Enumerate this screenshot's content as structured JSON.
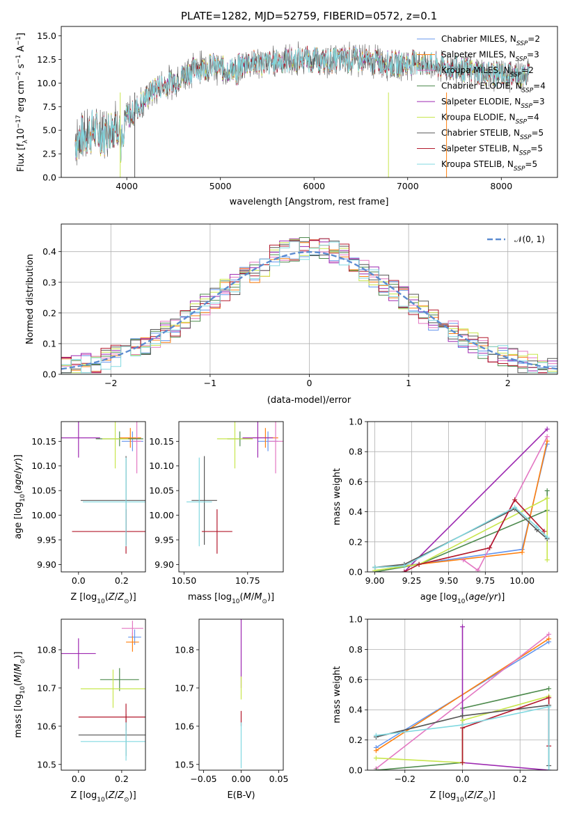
{
  "chart_data": [
    {
      "type": "line",
      "title": "PLATE=1282, MJD=52759, FIBERID=0572, z=0.1",
      "xlabel": "wavelength [Angstrom, rest frame]",
      "ylabel": "Flux [f_λ10^-17 erg cm^-2 s^-1 A^-1]",
      "xlim": [
        3300,
        8600
      ],
      "ylim": [
        0,
        16
      ],
      "xticks": [
        4000,
        5000,
        6000,
        7000,
        8000
      ],
      "yticks": [
        0.0,
        2.5,
        5.0,
        7.5,
        10.0,
        12.5,
        15.0
      ],
      "legend_position": "right",
      "approx_spectrum": {
        "x": [
          3450,
          3550,
          3650,
          3750,
          3850,
          3950,
          4100,
          4300,
          4500,
          4700,
          4900,
          5100,
          5300,
          5500,
          5700,
          5900,
          6100,
          6300,
          6500,
          6700,
          6900,
          7100,
          7300,
          7500,
          7700,
          7900,
          8100,
          8250
        ],
        "y": [
          3.8,
          4.5,
          5.0,
          4.5,
          5.5,
          6.0,
          7.2,
          9.5,
          10.2,
          11.4,
          11.8,
          11.4,
          12.2,
          12.1,
          12.4,
          12.6,
          12.3,
          12.5,
          12.4,
          12.2,
          12.0,
          12.2,
          11.8,
          11.6,
          11.2,
          11.0,
          10.9,
          10.8
        ]
      },
      "series": [
        {
          "name": "Chabrier MILES, N_SSP=2",
          "color": "#6495ed"
        },
        {
          "name": "Salpeter MILES, N_SSP=3",
          "color": "#ff7f0e"
        },
        {
          "name": "Kroupa MILES, N_SSP=2",
          "color": "#e377c2"
        },
        {
          "name": "Chabrier ELODIE, N_SSP=4",
          "color": "#4d8a4d"
        },
        {
          "name": "Salpeter ELODIE, N_SSP=3",
          "color": "#9c27b0"
        },
        {
          "name": "Kroupa ELODIE, N_SSP=4",
          "color": "#c8e64c"
        },
        {
          "name": "Chabrier STELIB, N_SSP=5",
          "color": "#555555"
        },
        {
          "name": "Salpeter STELIB, N_SSP=5",
          "color": "#b2182b"
        },
        {
          "name": "Kroupa STELIB, N_SSP=5",
          "color": "#80d8e0"
        }
      ]
    },
    {
      "type": "line",
      "xlabel": "(data-model)/error",
      "ylabel": "Normed distribution",
      "xlim": [
        -2.5,
        2.5
      ],
      "ylim": [
        0,
        0.49
      ],
      "xticks": [
        -2,
        -1,
        0,
        1,
        2
      ],
      "yticks": [
        0.0,
        0.1,
        0.2,
        0.3,
        0.4
      ],
      "grid": true,
      "legend_position": "top-right",
      "reference_curve": {
        "name": "𝒩(0, 1)",
        "color": "#5b8bd0",
        "style": "dashed"
      }
    },
    {
      "type": "scatter",
      "xlabel": "Z [log10(Z/Z⊙)]",
      "ylabel": "age  [log10(age/yr)]",
      "xlim": [
        -0.08,
        0.31
      ],
      "ylim": [
        9.885,
        10.19
      ],
      "xticks": [
        0.0,
        0.2
      ],
      "yticks": [
        9.9,
        9.95,
        10.0,
        10.05,
        10.1,
        10.15
      ],
      "points": [
        {
          "x": 0.25,
          "y": 10.15,
          "xerr": 0.05,
          "yerr": 0.02,
          "color": "#6495ed"
        },
        {
          "x": 0.24,
          "y": 10.157,
          "xerr": 0.05,
          "yerr": 0.02,
          "color": "#ff7f0e"
        },
        {
          "x": 0.27,
          "y": 10.15,
          "xerr": 0.02,
          "yerr": 0.065,
          "color": "#e377c2"
        },
        {
          "x": 0.19,
          "y": 10.155,
          "xerr": 0.11,
          "yerr": 0.015,
          "color": "#4d8a4d"
        },
        {
          "x": 0.0,
          "y": 10.157,
          "xerr": 0.1,
          "yerr": 0.04,
          "color": "#9c27b0"
        },
        {
          "x": 0.17,
          "y": 10.155,
          "xerr": 0.06,
          "yerr": 0.06,
          "color": "#c8e64c"
        },
        {
          "x": 0.22,
          "y": 10.03,
          "xerr": 0.21,
          "yerr": 0.09,
          "color": "#555555"
        },
        {
          "x": 0.22,
          "y": 9.967,
          "xerr": 0.25,
          "yerr": 0.045,
          "color": "#b2182b"
        },
        {
          "x": 0.22,
          "y": 10.027,
          "xerr": 0.2,
          "yerr": 0.09,
          "color": "#80d8e0"
        }
      ]
    },
    {
      "type": "scatter",
      "xlabel": "mass [log10(M/M⊙)]",
      "xlim": [
        10.48,
        10.89
      ],
      "ylim": [
        9.885,
        10.19
      ],
      "xticks": [
        10.5,
        10.75
      ],
      "yticks": [
        9.9,
        9.95,
        10.0,
        10.05,
        10.1,
        10.15
      ],
      "points": [
        {
          "x": 10.83,
          "y": 10.15,
          "xerr": 0.04,
          "yerr": 0.02,
          "color": "#6495ed"
        },
        {
          "x": 10.82,
          "y": 10.157,
          "xerr": 0.05,
          "yerr": 0.02,
          "color": "#ff7f0e"
        },
        {
          "x": 10.86,
          "y": 10.15,
          "xerr": 0.03,
          "yerr": 0.065,
          "color": "#e377c2"
        },
        {
          "x": 10.72,
          "y": 10.155,
          "xerr": 0.05,
          "yerr": 0.015,
          "color": "#4d8a4d"
        },
        {
          "x": 10.79,
          "y": 10.157,
          "xerr": 0.06,
          "yerr": 0.04,
          "color": "#9c27b0"
        },
        {
          "x": 10.7,
          "y": 10.155,
          "xerr": 0.07,
          "yerr": 0.06,
          "color": "#c8e64c"
        },
        {
          "x": 10.58,
          "y": 10.03,
          "xerr": 0.05,
          "yerr": 0.09,
          "color": "#555555"
        },
        {
          "x": 10.63,
          "y": 9.967,
          "xerr": 0.06,
          "yerr": 0.045,
          "color": "#b2182b"
        },
        {
          "x": 10.56,
          "y": 10.027,
          "xerr": 0.05,
          "yerr": 0.09,
          "color": "#80d8e0"
        }
      ]
    },
    {
      "type": "line",
      "xlabel": "age  [log10(age/yr)]",
      "ylabel": "mass weight",
      "xlim": [
        8.95,
        10.24
      ],
      "ylim": [
        0,
        1.0
      ],
      "xticks": [
        9.0,
        9.25,
        9.5,
        9.75,
        10.0
      ],
      "yticks": [
        0.0,
        0.2,
        0.4,
        0.6,
        0.8,
        1.0
      ],
      "grid": true,
      "series": [
        {
          "color": "#6495ed",
          "x": [
            9.0,
            9.2,
            10.0,
            10.17
          ],
          "y": [
            0.03,
            0.04,
            0.15,
            0.85
          ]
        },
        {
          "color": "#ff7f0e",
          "x": [
            9.0,
            9.2,
            10.0,
            10.17
          ],
          "y": [
            0.03,
            0.04,
            0.13,
            0.87
          ]
        },
        {
          "color": "#e377c2",
          "x": [
            9.6,
            9.7,
            10.17
          ],
          "y": [
            0.08,
            0.01,
            0.9
          ]
        },
        {
          "color": "#4d8a4d",
          "x": [
            9.0,
            9.3,
            10.17,
            10.17
          ],
          "y": [
            0.0,
            0.05,
            0.41,
            0.54
          ]
        },
        {
          "color": "#9c27b0",
          "x": [
            9.2,
            10.17
          ],
          "y": [
            0.0,
            0.95
          ]
        },
        {
          "color": "#c8e64c",
          "x": [
            9.0,
            9.3,
            10.17,
            10.17
          ],
          "y": [
            0.01,
            0.05,
            0.49,
            0.08
          ]
        },
        {
          "color": "#555555",
          "x": [
            9.0,
            9.2,
            9.95,
            10.1,
            10.17
          ],
          "y": [
            0.03,
            0.05,
            0.42,
            0.28,
            0.22
          ]
        },
        {
          "color": "#b2182b",
          "x": [
            9.2,
            9.3,
            9.78,
            9.95,
            10.15
          ],
          "y": [
            0.0,
            0.05,
            0.16,
            0.48,
            0.27
          ]
        },
        {
          "color": "#80d8e0",
          "x": [
            9.0,
            9.2,
            9.95,
            10.1,
            10.17
          ],
          "y": [
            0.03,
            0.04,
            0.43,
            0.3,
            0.23
          ]
        }
      ]
    },
    {
      "type": "scatter",
      "xlabel": "Z [log10(Z/Z⊙)]",
      "ylabel": "mass [log10(M/M⊙)]",
      "xlim": [
        -0.08,
        0.31
      ],
      "ylim": [
        10.485,
        10.88
      ],
      "xticks": [
        0.0,
        0.2
      ],
      "yticks": [
        10.5,
        10.6,
        10.7,
        10.8
      ],
      "points": [
        {
          "x": 0.26,
          "y": 10.833,
          "xerr": 0.03,
          "yerr": 0.02,
          "color": "#6495ed"
        },
        {
          "x": 0.25,
          "y": 10.82,
          "xerr": 0.03,
          "yerr": 0.025,
          "color": "#ff7f0e"
        },
        {
          "x": 0.25,
          "y": 10.856,
          "xerr": 0.05,
          "yerr": 0.02,
          "color": "#e377c2"
        },
        {
          "x": 0.19,
          "y": 10.722,
          "xerr": 0.09,
          "yerr": 0.03,
          "color": "#4d8a4d"
        },
        {
          "x": 0.0,
          "y": 10.79,
          "xerr": 0.08,
          "yerr": 0.04,
          "color": "#9c27b0"
        },
        {
          "x": 0.16,
          "y": 10.698,
          "xerr": 0.15,
          "yerr": 0.05,
          "color": "#c8e64c"
        },
        {
          "x": 0.22,
          "y": 10.577,
          "xerr": 0.22,
          "yerr": 0.055,
          "color": "#555555"
        },
        {
          "x": 0.22,
          "y": 10.624,
          "xerr": 0.22,
          "yerr": 0.035,
          "color": "#b2182b"
        },
        {
          "x": 0.22,
          "y": 10.56,
          "xerr": 0.21,
          "yerr": 0.05,
          "color": "#80d8e0"
        }
      ]
    },
    {
      "type": "scatter",
      "xlabel": "E(B-V)",
      "xlim": [
        -0.056,
        0.056
      ],
      "ylim": [
        10.485,
        10.88
      ],
      "xticks": [
        -0.05,
        0.0,
        0.05
      ],
      "yticks": [
        10.5,
        10.6,
        10.7,
        10.8
      ],
      "points": [
        {
          "x": 0.0,
          "y": 10.79,
          "yerr": 0.09,
          "color": "#9c27b0"
        },
        {
          "x": 0.0,
          "y": 10.7,
          "yerr": 0.03,
          "color": "#c8e64c"
        },
        {
          "x": 0.0,
          "y": 10.62,
          "yerr": 0.02,
          "color": "#b2182b"
        },
        {
          "x": 0.0,
          "y": 10.55,
          "yerr": 0.06,
          "color": "#80d8e0"
        }
      ]
    },
    {
      "type": "line",
      "xlabel": "Z [log10(Z/Z⊙)]",
      "ylabel": "mass weight",
      "xlim": [
        -0.33,
        0.33
      ],
      "ylim": [
        0,
        1.0
      ],
      "xticks": [
        -0.2,
        0.0,
        0.2
      ],
      "yticks": [
        0.0,
        0.2,
        0.4,
        0.6,
        0.8,
        1.0
      ],
      "grid": true,
      "series": [
        {
          "color": "#6495ed",
          "x": [
            -0.3,
            0.3
          ],
          "y": [
            0.15,
            0.85
          ]
        },
        {
          "color": "#ff7f0e",
          "x": [
            -0.3,
            0.3
          ],
          "y": [
            0.13,
            0.87
          ]
        },
        {
          "color": "#e377c2",
          "x": [
            -0.3,
            0.3
          ],
          "y": [
            0.01,
            0.9
          ]
        },
        {
          "color": "#4d8a4d",
          "x": [
            -0.3,
            0.0,
            0.0,
            0.3
          ],
          "y": [
            0.0,
            0.05,
            0.41,
            0.54
          ]
        },
        {
          "color": "#9c27b0",
          "x": [
            0.0,
            0.0,
            0.3
          ],
          "y": [
            0.95,
            0.05,
            0.0
          ]
        },
        {
          "color": "#c8e64c",
          "x": [
            -0.3,
            0.0,
            0.0,
            0.3
          ],
          "y": [
            0.08,
            0.05,
            0.33,
            0.49
          ]
        },
        {
          "color": "#555555",
          "x": [
            -0.3,
            0.0,
            0.3,
            0.3
          ],
          "y": [
            0.22,
            0.36,
            0.43,
            0.03
          ]
        },
        {
          "color": "#b2182b",
          "x": [
            0.0,
            0.0,
            0.3,
            0.3
          ],
          "y": [
            0.05,
            0.28,
            0.48,
            0.16
          ]
        },
        {
          "color": "#80d8e0",
          "x": [
            -0.3,
            0.0,
            0.3,
            0.3
          ],
          "y": [
            0.23,
            0.3,
            0.42,
            0.0
          ]
        }
      ]
    }
  ]
}
